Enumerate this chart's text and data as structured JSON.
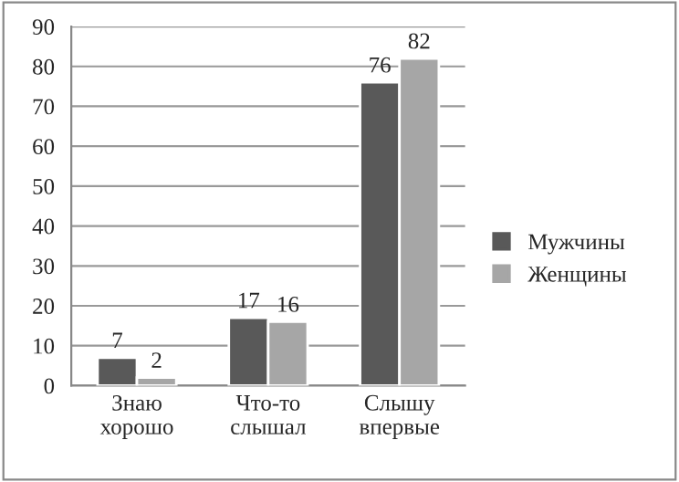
{
  "chart_data": {
    "type": "bar",
    "categories": [
      "Знаю хорошо",
      "Что-то слышал",
      "Слышу впервые"
    ],
    "series": [
      {
        "name": "Мужчины",
        "color": "#595959",
        "values": [
          7,
          17,
          76
        ]
      },
      {
        "name": "Женщины",
        "color": "#a6a6a6",
        "values": [
          2,
          16,
          82
        ]
      }
    ],
    "ylim": [
      0,
      90
    ],
    "yticks": [
      0,
      10,
      20,
      30,
      40,
      50,
      60,
      70,
      80,
      90
    ],
    "grid": "y",
    "legend": "right",
    "data_labels": true
  }
}
